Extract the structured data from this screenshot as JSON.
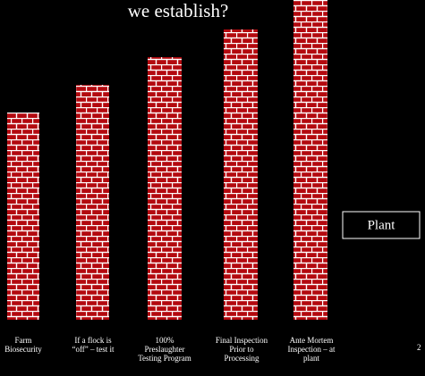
{
  "title": "we establish?",
  "barriers": [
    {
      "label": [
        "Farm",
        "Biosecurity"
      ]
    },
    {
      "label": [
        "If a flock is",
        "“off” – test it"
      ]
    },
    {
      "label": [
        "100%",
        "Preslaughter",
        "Testing Program"
      ]
    },
    {
      "label": [
        "Final Inspection",
        "Prior to",
        "Processing"
      ]
    },
    {
      "label": [
        "Ante Mortem",
        "Inspection – at",
        "plant"
      ]
    }
  ],
  "plant": "Plant",
  "page_number": "2"
}
